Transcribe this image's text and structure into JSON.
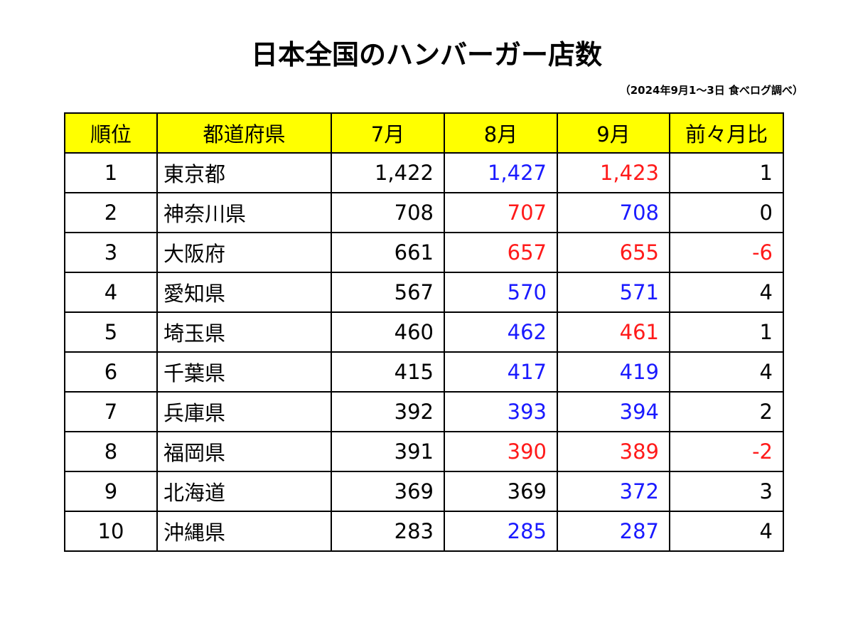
{
  "title": "日本全国のハンバーガー店数",
  "source": "（2024年9月1～3日 食べログ調べ）",
  "colors": {
    "header_bg": "#ffff00",
    "increase": "#1a1aff",
    "decrease": "#ff1a1a",
    "neutral": "#000000"
  },
  "table": {
    "headers": [
      "順位",
      "都道府県",
      "7月",
      "8月",
      "9月",
      "前々月比"
    ],
    "rows": [
      {
        "rank": "1",
        "prefecture": "東京都",
        "jul": "1,422",
        "aug": "1,427",
        "sep": "1,423",
        "diff": "1",
        "aug_color": "blue",
        "sep_color": "red",
        "diff_color": "black"
      },
      {
        "rank": "2",
        "prefecture": "神奈川県",
        "jul": "708",
        "aug": "707",
        "sep": "708",
        "diff": "0",
        "aug_color": "red",
        "sep_color": "blue",
        "diff_color": "black"
      },
      {
        "rank": "3",
        "prefecture": "大阪府",
        "jul": "661",
        "aug": "657",
        "sep": "655",
        "diff": "-6",
        "aug_color": "red",
        "sep_color": "red",
        "diff_color": "red"
      },
      {
        "rank": "4",
        "prefecture": "愛知県",
        "jul": "567",
        "aug": "570",
        "sep": "571",
        "diff": "4",
        "aug_color": "blue",
        "sep_color": "blue",
        "diff_color": "black"
      },
      {
        "rank": "5",
        "prefecture": "埼玉県",
        "jul": "460",
        "aug": "462",
        "sep": "461",
        "diff": "1",
        "aug_color": "blue",
        "sep_color": "red",
        "diff_color": "black"
      },
      {
        "rank": "6",
        "prefecture": "千葉県",
        "jul": "415",
        "aug": "417",
        "sep": "419",
        "diff": "4",
        "aug_color": "blue",
        "sep_color": "blue",
        "diff_color": "black"
      },
      {
        "rank": "7",
        "prefecture": "兵庫県",
        "jul": "392",
        "aug": "393",
        "sep": "394",
        "diff": "2",
        "aug_color": "blue",
        "sep_color": "blue",
        "diff_color": "black"
      },
      {
        "rank": "8",
        "prefecture": "福岡県",
        "jul": "391",
        "aug": "390",
        "sep": "389",
        "diff": "-2",
        "aug_color": "red",
        "sep_color": "red",
        "diff_color": "red"
      },
      {
        "rank": "9",
        "prefecture": "北海道",
        "jul": "369",
        "aug": "369",
        "sep": "372",
        "diff": "3",
        "aug_color": "black",
        "sep_color": "blue",
        "diff_color": "black"
      },
      {
        "rank": "10",
        "prefecture": "沖縄県",
        "jul": "283",
        "aug": "285",
        "sep": "287",
        "diff": "4",
        "aug_color": "blue",
        "sep_color": "blue",
        "diff_color": "black"
      }
    ]
  }
}
